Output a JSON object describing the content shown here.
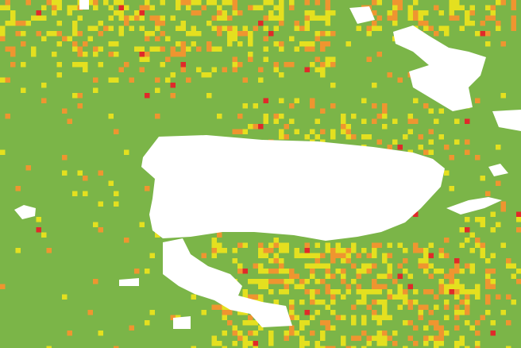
{
  "map": {
    "colors": {
      "water": "#7bb548",
      "land": "#ffffff",
      "low": "#e4e01f",
      "medium": "#ef9530",
      "high": "#e0292a"
    }
  }
}
